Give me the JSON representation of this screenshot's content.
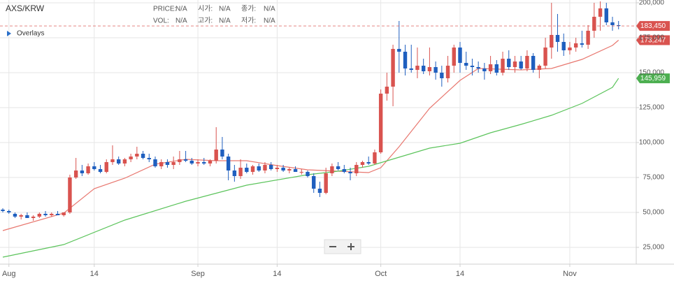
{
  "chart_data": {
    "type": "candlestick",
    "title": "AXS/KRW",
    "info": {
      "price_label": "PRICE:",
      "price": "N/A",
      "open_label": "시가:",
      "open": "N/A",
      "close_label": "종가:",
      "close": "N/A",
      "vol_label": "VOL:",
      "vol": "N/A",
      "high_label": "고가:",
      "high": "N/A",
      "low_label": "저가:",
      "low": "N/A"
    },
    "overlays": "Overlays",
    "up_color": "#d9534f",
    "down_color": "#1f5fbf",
    "x": [
      0,
      1,
      2,
      3,
      4,
      5,
      6,
      7,
      8,
      9,
      10,
      11,
      12,
      13,
      14,
      15,
      16,
      17,
      18,
      19,
      20,
      21,
      22,
      23,
      24,
      25,
      26,
      27,
      28,
      29,
      30,
      31,
      32,
      33,
      34,
      35,
      36,
      37,
      38,
      39,
      40,
      41,
      42,
      43,
      44,
      45,
      46,
      47,
      48,
      49,
      50,
      51,
      52,
      53,
      54,
      55,
      56,
      57,
      58,
      59,
      60,
      61,
      62,
      63,
      64,
      65,
      66,
      67,
      68,
      69,
      70,
      71,
      72,
      73,
      74,
      75,
      76,
      77,
      78,
      79,
      80,
      81,
      82,
      83,
      84,
      85,
      86,
      87,
      88,
      89,
      90,
      91,
      92,
      93,
      94,
      95,
      96,
      97,
      98,
      99,
      100,
      101
    ],
    "open": [
      52000,
      51000,
      49000,
      47000,
      48000,
      46000,
      47000,
      49000,
      48000,
      49000,
      48000,
      50000,
      75000,
      80000,
      78000,
      83000,
      81000,
      79000,
      86000,
      88000,
      85000,
      88000,
      90000,
      92000,
      89000,
      88000,
      83000,
      86000,
      84000,
      86000,
      88000,
      87000,
      85000,
      86000,
      85000,
      87000,
      95000,
      90000,
      80000,
      76000,
      82000,
      79000,
      83000,
      80000,
      84000,
      81000,
      82000,
      80000,
      81000,
      79000,
      79000,
      76000,
      67000,
      64000,
      78000,
      83000,
      81000,
      79000,
      78000,
      84000,
      86000,
      85000,
      93000,
      135000,
      140000,
      167000,
      165000,
      153000,
      152000,
      155000,
      151000,
      154000,
      150000,
      146000,
      155000,
      168000,
      157000,
      155000,
      154000,
      153000,
      151000,
      156000,
      150000,
      160000,
      154000,
      158000,
      153000,
      162000,
      152000,
      155000,
      168000,
      177000,
      172000,
      166000,
      168000,
      171000,
      170000,
      180000,
      190000,
      196000,
      186000,
      184000
    ],
    "high": [
      53000,
      52000,
      50000,
      49000,
      50000,
      48000,
      50000,
      51000,
      50000,
      51000,
      50000,
      77000,
      89000,
      84000,
      85000,
      86000,
      84000,
      88000,
      98000,
      90000,
      89000,
      92000,
      97000,
      94000,
      92000,
      90000,
      88000,
      88000,
      90000,
      94000,
      94000,
      89000,
      88000,
      89000,
      88000,
      111000,
      104000,
      92000,
      84000,
      88000,
      85000,
      84000,
      85000,
      86000,
      86000,
      84000,
      84000,
      82000,
      83000,
      81000,
      80000,
      78000,
      72000,
      82000,
      85000,
      86000,
      84000,
      82000,
      86000,
      87000,
      90000,
      95000,
      138000,
      150000,
      170000,
      187000,
      170000,
      170000,
      168000,
      160000,
      168000,
      158000,
      155000,
      162000,
      170000,
      172000,
      165000,
      160000,
      158000,
      157000,
      162000,
      159000,
      165000,
      166000,
      162000,
      162000,
      166000,
      164000,
      156000,
      175000,
      200000,
      192000,
      178000,
      172000,
      175000,
      180000,
      184000,
      200000,
      201000,
      200000,
      190000,
      187000
    ],
    "low": [
      50000,
      49000,
      46000,
      45000,
      46000,
      44000,
      46000,
      47000,
      47000,
      48000,
      47000,
      49000,
      74000,
      76000,
      77000,
      80000,
      78000,
      78000,
      84000,
      84000,
      83000,
      86000,
      88000,
      88000,
      86000,
      82000,
      81000,
      82000,
      81000,
      84000,
      86000,
      84000,
      83000,
      84000,
      83000,
      85000,
      88000,
      73000,
      72000,
      74000,
      78000,
      77000,
      79000,
      78000,
      80000,
      79000,
      79000,
      78000,
      79000,
      77000,
      75000,
      64000,
      61000,
      63000,
      76000,
      80000,
      78000,
      73000,
      76000,
      82000,
      84000,
      84000,
      92000,
      130000,
      126000,
      150000,
      148000,
      150000,
      146000,
      149000,
      148000,
      145000,
      140000,
      143000,
      150000,
      150000,
      152000,
      148000,
      150000,
      145000,
      149000,
      148000,
      148000,
      152000,
      150000,
      152000,
      151000,
      150000,
      146000,
      153000,
      160000,
      165000,
      162000,
      163000,
      165000,
      168000,
      167000,
      175000,
      180000,
      184000,
      180000,
      181000
    ],
    "close": [
      51000,
      50000,
      47000,
      48000,
      46000,
      47000,
      49000,
      48000,
      49000,
      48000,
      50000,
      75000,
      80000,
      78000,
      83000,
      81000,
      79000,
      86000,
      88000,
      85000,
      88000,
      90000,
      92000,
      89000,
      88000,
      83000,
      86000,
      84000,
      86000,
      88000,
      87000,
      85000,
      86000,
      85000,
      87000,
      95000,
      90000,
      80000,
      76000,
      82000,
      79000,
      83000,
      80000,
      84000,
      81000,
      82000,
      80000,
      81000,
      79000,
      79000,
      76000,
      67000,
      64000,
      78000,
      83000,
      81000,
      79000,
      78000,
      84000,
      86000,
      85000,
      93000,
      135000,
      140000,
      167000,
      165000,
      153000,
      152000,
      155000,
      151000,
      154000,
      150000,
      146000,
      155000,
      168000,
      157000,
      155000,
      154000,
      153000,
      151000,
      156000,
      150000,
      160000,
      154000,
      158000,
      153000,
      162000,
      152000,
      155000,
      168000,
      177000,
      172000,
      166000,
      168000,
      171000,
      170000,
      180000,
      190000,
      196000,
      186000,
      184000,
      183450
    ],
    "last_price": {
      "value": 183450,
      "label": "183,450",
      "color": "#d9534f"
    },
    "series": [
      {
        "color": "#e8776f",
        "label_color": "#d9534f",
        "x": [
          0,
          10,
          15,
          20,
          25,
          30,
          35,
          40,
          45,
          50,
          55,
          60,
          62,
          65,
          70,
          75,
          78,
          85,
          90,
          95,
          100,
          101
        ],
        "values": [
          37000,
          49500,
          67000,
          74500,
          84500,
          88000,
          87000,
          87000,
          83500,
          80500,
          79500,
          78500,
          82000,
          97000,
          124500,
          144500,
          153000,
          152000,
          153000,
          159500,
          169500,
          173247
        ],
        "value_labels": [
          null,
          null,
          null,
          null,
          null,
          null,
          null,
          null,
          null,
          null,
          null,
          null,
          null,
          null,
          null,
          null,
          null,
          null,
          null,
          null,
          null,
          "173,247"
        ]
      },
      {
        "color": "#5cc45c",
        "label_color": "#4caf50",
        "x": [
          0,
          10,
          20,
          30,
          40,
          50,
          55,
          60,
          65,
          70,
          75,
          80,
          85,
          90,
          95,
          100,
          101
        ],
        "values": [
          18000,
          27000,
          44500,
          58000,
          69500,
          77000,
          79500,
          83000,
          89500,
          96000,
          99500,
          107000,
          113000,
          119500,
          128000,
          139500,
          145959
        ],
        "value_labels": [
          null,
          null,
          null,
          null,
          null,
          null,
          null,
          null,
          null,
          null,
          null,
          null,
          null,
          null,
          null,
          null,
          "145,959"
        ]
      }
    ],
    "xlim": [
      -0.46,
      103.9
    ],
    "xticks": [
      {
        "value": 1,
        "label": "Aug"
      },
      {
        "value": 15,
        "label": "14"
      },
      {
        "value": 32,
        "label": "Sep"
      },
      {
        "value": 45,
        "label": "14"
      },
      {
        "value": 62,
        "label": "Oct"
      },
      {
        "value": 75,
        "label": "14"
      },
      {
        "value": 93,
        "label": "Nov"
      }
    ],
    "ylim": [
      13000,
      202000
    ],
    "yticks": [
      {
        "value": 25000,
        "label": "25,000"
      },
      {
        "value": 50000,
        "label": "50,000"
      },
      {
        "value": 75000,
        "label": "75,000"
      },
      {
        "value": 100000,
        "label": "100,000"
      },
      {
        "value": 125000,
        "label": "125,000"
      },
      {
        "value": 150000,
        "label": "150,000"
      },
      {
        "value": 175000,
        "label": "175,000"
      },
      {
        "value": 200000,
        "label": "200,000"
      }
    ],
    "grid": true
  }
}
